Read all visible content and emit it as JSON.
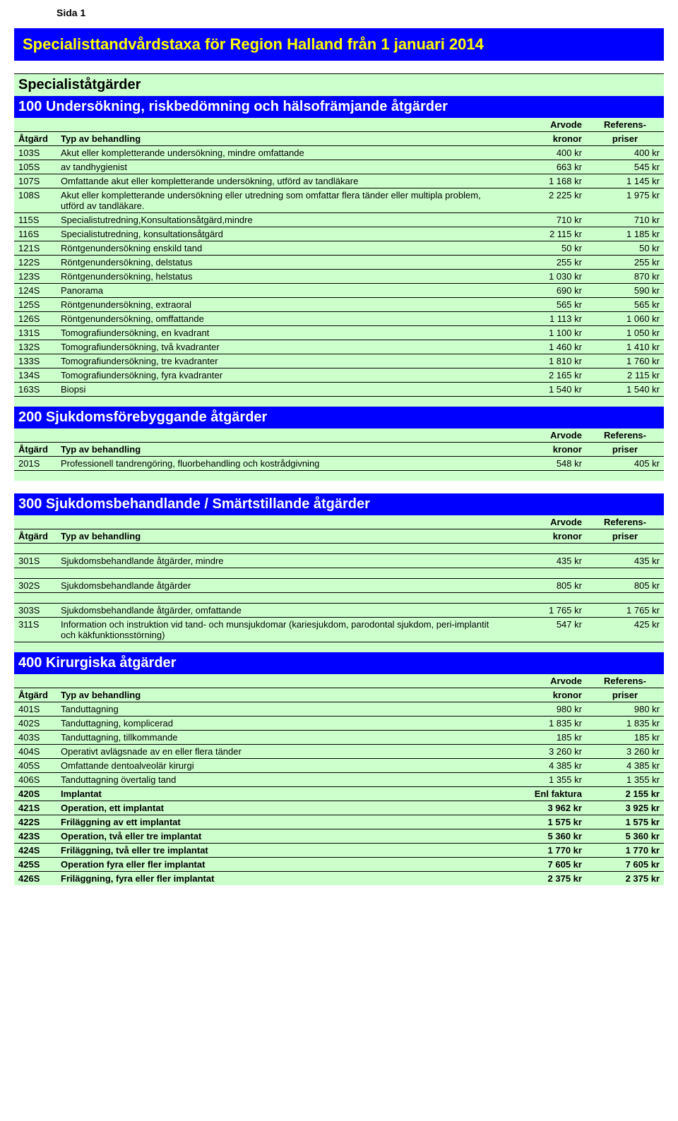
{
  "page_label": "Sida 1",
  "title": "Specialisttandvårdstaxa för Region Halland från 1 januari 2014",
  "columns": {
    "atgard": "Åtgärd",
    "typ": "Typ av behandling",
    "arvode_top": "Arvode",
    "arvode_bot": "kronor",
    "ref_top": "Referens-",
    "ref_bot": "priser"
  },
  "section_100": {
    "specialist_title": "Specialiståtgärder",
    "heading": "100 Undersökning, riskbedömning och  hälsofrämjande åtgärder",
    "rows": [
      {
        "code": "103S",
        "desc": "Akut eller kompletterande undersökning, mindre omfattande",
        "arvode": "400 kr",
        "ref": "400 kr",
        "bold": false
      },
      {
        "code": "105S",
        "desc": "av tandhygienist",
        "arvode": "663 kr",
        "ref": "545 kr",
        "bold": false
      },
      {
        "code": "107S",
        "desc": "Omfattande akut eller kompletterande undersökning, utförd av tandläkare",
        "arvode": "1 168 kr",
        "ref": "1 145 kr",
        "bold": false
      },
      {
        "code": "108S",
        "desc": "Akut eller kompletterande undersökning eller utredning som omfattar flera tänder eller multipla problem, utförd av tandläkare.",
        "arvode": "2 225 kr",
        "ref": "1 975 kr",
        "bold": false
      },
      {
        "code": "115S",
        "desc": "Specialistutredning,Konsultationsåtgärd,mindre",
        "arvode": "710 kr",
        "ref": "710 kr",
        "bold": false
      },
      {
        "code": "116S",
        "desc": "Specialistutredning, konsultationsåtgärd",
        "arvode": "2 115 kr",
        "ref": "1 185 kr",
        "bold": false
      },
      {
        "code": "121S",
        "desc": "Röntgenundersökning enskild tand",
        "arvode": "50 kr",
        "ref": "50 kr",
        "bold": false
      },
      {
        "code": "122S",
        "desc": "Röntgenundersökning, delstatus",
        "arvode": "255 kr",
        "ref": "255 kr",
        "bold": false
      },
      {
        "code": "123S",
        "desc": "Röntgenundersökning, helstatus",
        "arvode": "1 030 kr",
        "ref": "870 kr",
        "bold": false
      },
      {
        "code": "124S",
        "desc": "Panorama",
        "arvode": "690 kr",
        "ref": "590 kr",
        "bold": false
      },
      {
        "code": "125S",
        "desc": "Röntgenundersökning, extraoral",
        "arvode": "565 kr",
        "ref": "565 kr",
        "bold": false
      },
      {
        "code": "126S",
        "desc": "Röntgenundersökning, omffattande",
        "arvode": "1 113 kr",
        "ref": "1 060 kr",
        "bold": false
      },
      {
        "code": "131S",
        "desc": "Tomografiundersökning, en kvadrant",
        "arvode": "1 100 kr",
        "ref": "1 050 kr",
        "bold": false
      },
      {
        "code": "132S",
        "desc": "Tomografiundersökning, två kvadranter",
        "arvode": "1 460 kr",
        "ref": "1 410 kr",
        "bold": false
      },
      {
        "code": "133S",
        "desc": "Tomografiundersökning, tre kvadranter",
        "arvode": "1 810 kr",
        "ref": "1 760 kr",
        "bold": false
      },
      {
        "code": "134S",
        "desc": "Tomografiundersökning, fyra kvadranter",
        "arvode": "2 165 kr",
        "ref": "2 115 kr",
        "bold": false
      },
      {
        "code": "163S",
        "desc": "Biopsi",
        "arvode": "1 540 kr",
        "ref": "1 540 kr",
        "bold": false
      }
    ]
  },
  "section_200": {
    "heading": "200 Sjukdomsförebyggande åtgärder",
    "rows": [
      {
        "code": "201S",
        "desc": "Professionell tandrengöring, fluorbehandling och kostrådgivning",
        "arvode": "548 kr",
        "ref": "405 kr",
        "bold": false
      }
    ]
  },
  "section_300": {
    "heading": "300 Sjukdomsbehandlande / Smärtstillande åtgärder",
    "rows": [
      {
        "code": "301S",
        "desc": "Sjukdomsbehandlande åtgärder, mindre",
        "arvode": "435 kr",
        "ref": "435 kr",
        "bold": false
      },
      {
        "gap": true
      },
      {
        "code": "302S",
        "desc": "Sjukdomsbehandlande åtgärder",
        "arvode": "805 kr",
        "ref": "805 kr",
        "bold": false
      },
      {
        "gap": true
      },
      {
        "code": "303S",
        "desc": "Sjukdomsbehandlande åtgärder, omfattande",
        "arvode": "1 765 kr",
        "ref": "1 765 kr",
        "bold": false
      },
      {
        "code": "311S",
        "desc": "Information och instruktion vid tand- och munsjukdomar (kariesjukdom, parodontal sjukdom, peri-implantit och käkfunktionsstörning)",
        "arvode": "547 kr",
        "ref": "425 kr",
        "bold": false
      }
    ]
  },
  "section_400": {
    "heading": "400 Kirurgiska åtgärder",
    "rows": [
      {
        "code": "401S",
        "desc": "Tanduttagning",
        "arvode": "980 kr",
        "ref": "980 kr",
        "bold": false
      },
      {
        "code": "402S",
        "desc": "Tanduttagning, komplicerad",
        "arvode": "1 835 kr",
        "ref": "1 835 kr",
        "bold": false
      },
      {
        "code": "403S",
        "desc": "Tanduttagning, tillkommande",
        "arvode": "185 kr",
        "ref": "185 kr",
        "bold": false
      },
      {
        "code": "404S",
        "desc": "Operativt avlägsnade av en eller flera tänder",
        "arvode": "3 260 kr",
        "ref": "3 260 kr",
        "bold": false
      },
      {
        "code": "405S",
        "desc": "Omfattande dentoalveolär kirurgi",
        "arvode": "4 385 kr",
        "ref": "4 385 kr",
        "bold": false
      },
      {
        "code": "406S",
        "desc": "Tanduttagning övertalig tand",
        "arvode": "1 355 kr",
        "ref": "1 355 kr",
        "bold": false
      },
      {
        "code": "420S",
        "desc": "Implantat",
        "arvode": "Enl faktura",
        "ref": "2 155 kr",
        "bold": true
      },
      {
        "code": "421S",
        "desc": "Operation, ett implantat",
        "arvode": "3 962 kr",
        "ref": "3 925 kr",
        "bold": true
      },
      {
        "code": "422S",
        "desc": "Friläggning av ett implantat",
        "arvode": "1 575 kr",
        "ref": "1 575 kr",
        "bold": true
      },
      {
        "code": "423S",
        "desc": "Operation, två eller tre implantat",
        "arvode": "5 360 kr",
        "ref": "5 360 kr",
        "bold": true
      },
      {
        "code": "424S",
        "desc": "Friläggning, två eller tre implantat",
        "arvode": "1 770 kr",
        "ref": "1 770 kr",
        "bold": true
      },
      {
        "code": "425S",
        "desc": "Operation fyra eller fler implantat",
        "arvode": "7 605 kr",
        "ref": "7 605 kr",
        "bold": true
      },
      {
        "code": "426S",
        "desc": "Friläggning, fyra eller fler implantat",
        "arvode": "2 375 kr",
        "ref": "2 375 kr",
        "bold": true
      }
    ]
  },
  "style": {
    "row_bg": "#ccffcc",
    "title_bg": "#0000ff",
    "title_fg": "#ffff00",
    "section_fg": "#ffffff",
    "border": "#000000",
    "body_fontsize": 13,
    "title_fontsize": 22,
    "section_fontsize": 20
  }
}
